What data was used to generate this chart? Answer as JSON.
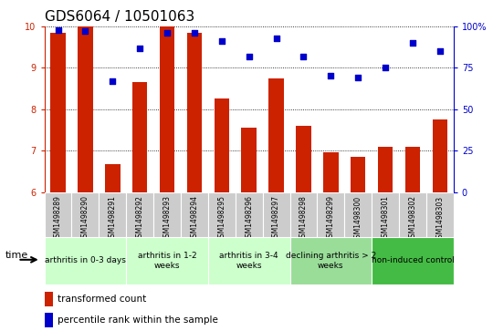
{
  "title": "GDS6064 / 10501063",
  "samples": [
    "GSM1498289",
    "GSM1498290",
    "GSM1498291",
    "GSM1498292",
    "GSM1498293",
    "GSM1498294",
    "GSM1498295",
    "GSM1498296",
    "GSM1498297",
    "GSM1498298",
    "GSM1498299",
    "GSM1498300",
    "GSM1498301",
    "GSM1498302",
    "GSM1498303"
  ],
  "bar_values": [
    9.85,
    10.0,
    6.68,
    8.65,
    10.0,
    9.85,
    8.25,
    7.55,
    8.75,
    7.6,
    6.97,
    6.85,
    7.1,
    7.1,
    7.75
  ],
  "dot_values": [
    98,
    97,
    67,
    87,
    96,
    96,
    91,
    82,
    93,
    82,
    70,
    69,
    75,
    90,
    85
  ],
  "ylim_left": [
    6,
    10
  ],
  "ylim_right": [
    0,
    100
  ],
  "yticks_left": [
    6,
    7,
    8,
    9,
    10
  ],
  "yticks_right": [
    0,
    25,
    50,
    75,
    100
  ],
  "ytick_labels_right": [
    "0",
    "25",
    "50",
    "75",
    "100%"
  ],
  "bar_color": "#cc2200",
  "dot_color": "#0000cc",
  "grid_color": "#000000",
  "sample_bg_color": "#cccccc",
  "groups": [
    {
      "label": "arthritis in 0-3 days",
      "start": 0,
      "end": 2,
      "color": "#ccffcc"
    },
    {
      "label": "arthritis in 1-2\nweeks",
      "start": 3,
      "end": 5,
      "color": "#ccffcc"
    },
    {
      "label": "arthritis in 3-4\nweeks",
      "start": 6,
      "end": 8,
      "color": "#ccffcc"
    },
    {
      "label": "declining arthritis > 2\nweeks",
      "start": 9,
      "end": 11,
      "color": "#99dd99"
    },
    {
      "label": "non-induced control",
      "start": 12,
      "end": 14,
      "color": "#44bb44"
    }
  ],
  "time_label": "time",
  "legend_bar": "transformed count",
  "legend_dot": "percentile rank within the sample",
  "title_fontsize": 11,
  "tick_fontsize": 7,
  "sample_fontsize": 5.5,
  "group_fontsize": 6.5,
  "legend_fontsize": 7.5
}
